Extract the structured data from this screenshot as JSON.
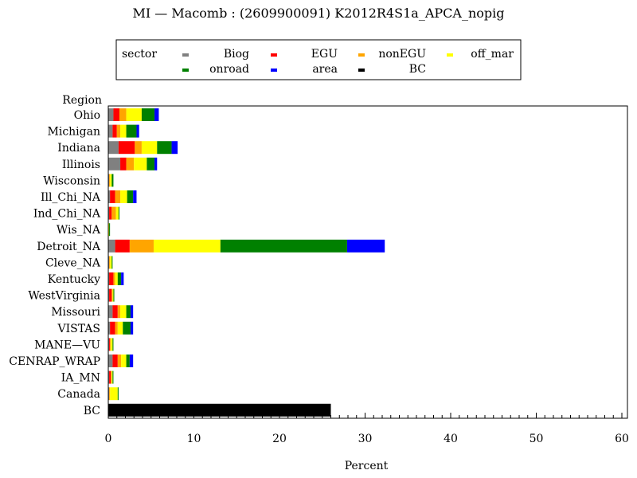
{
  "chart_data": {
    "type": "bar",
    "orientation": "horizontal",
    "stacked": true,
    "title": "MI — Macomb : (2609900091) K2012R4S1a_APCA_nopig",
    "xlabel": "Percent",
    "ylabel": "Region",
    "xlim": [
      0,
      60
    ],
    "xticks": [
      "0",
      "10",
      "20",
      "30",
      "40",
      "50",
      "60"
    ],
    "grid": false,
    "legend_title": "sector",
    "legend_position": "top",
    "categories": [
      "Ohio",
      "Michigan",
      "Indiana",
      "Illinois",
      "Wisconsin",
      "Ill_Chi_NA",
      "Ind_Chi_NA",
      "Wis_NA",
      "Detroit_NA",
      "Cleve_NA",
      "Kentucky",
      "WestVirginia",
      "Missouri",
      "VISTAS",
      "MANE—VU",
      "CENRAP_WRAP",
      "IA_MN",
      "Canada",
      "BC"
    ],
    "series": [
      {
        "name": "Biog",
        "color": "#808080",
        "values": [
          0.6,
          0.5,
          1.2,
          1.4,
          0.1,
          0.2,
          0.1,
          0.0,
          0.8,
          0.1,
          0.1,
          0.1,
          0.5,
          0.2,
          0.1,
          0.5,
          0.1,
          0.1,
          0.0
        ]
      },
      {
        "name": "EGU",
        "color": "#ff0000",
        "values": [
          0.7,
          0.5,
          1.9,
          0.7,
          0.0,
          0.6,
          0.3,
          0.0,
          1.7,
          0.0,
          0.5,
          0.3,
          0.6,
          0.6,
          0.1,
          0.6,
          0.2,
          0.0,
          0.0
        ]
      },
      {
        "name": "nonEGU",
        "color": "#ffa500",
        "values": [
          0.8,
          0.4,
          0.8,
          0.9,
          0.1,
          0.6,
          0.5,
          0.0,
          2.8,
          0.1,
          0.2,
          0.1,
          0.3,
          0.3,
          0.1,
          0.4,
          0.1,
          0.1,
          0.0
        ]
      },
      {
        "name": "off_mar",
        "color": "#ffff00",
        "values": [
          1.8,
          0.7,
          1.8,
          1.5,
          0.2,
          0.8,
          0.3,
          0.1,
          7.8,
          0.2,
          0.3,
          0.1,
          0.7,
          0.6,
          0.2,
          0.6,
          0.1,
          0.9,
          0.0
        ]
      },
      {
        "name": "onroad",
        "color": "#008000",
        "values": [
          1.5,
          1.2,
          1.7,
          0.9,
          0.2,
          0.7,
          0.1,
          0.1,
          14.8,
          0.1,
          0.4,
          0.1,
          0.5,
          0.9,
          0.1,
          0.4,
          0.1,
          0.1,
          0.0
        ]
      },
      {
        "name": "area",
        "color": "#0000ff",
        "values": [
          0.5,
          0.3,
          0.7,
          0.3,
          0.0,
          0.4,
          0.0,
          0.0,
          4.4,
          0.0,
          0.3,
          0.0,
          0.3,
          0.3,
          0.0,
          0.4,
          0.0,
          0.0,
          0.0
        ]
      },
      {
        "name": "BC",
        "color": "#000000",
        "values": [
          0.0,
          0.0,
          0.0,
          0.0,
          0.0,
          0.0,
          0.0,
          0.0,
          0.0,
          0.0,
          0.0,
          0.0,
          0.0,
          0.0,
          0.0,
          0.0,
          0.0,
          0.0,
          26.0
        ]
      }
    ]
  }
}
